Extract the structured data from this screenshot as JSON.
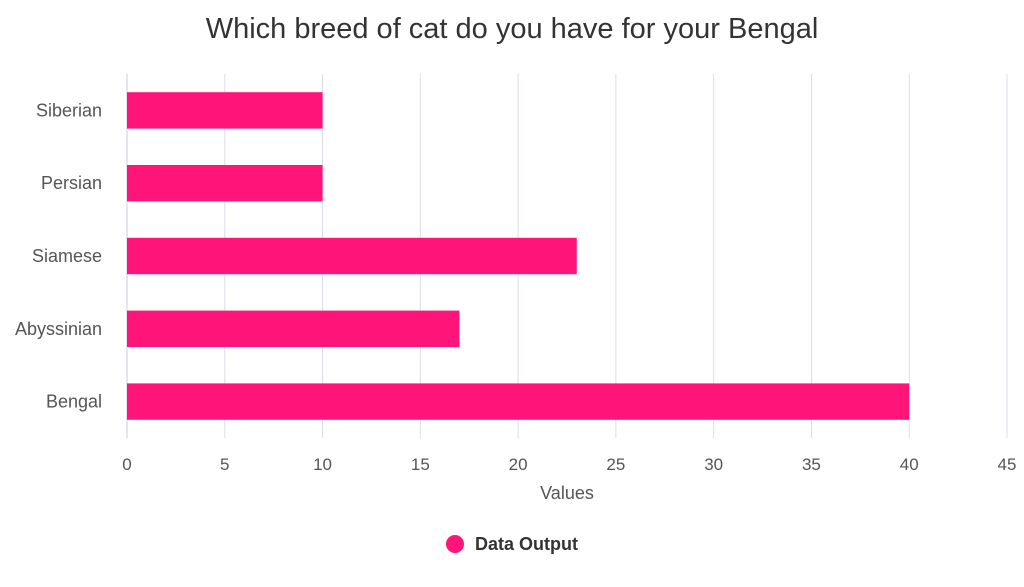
{
  "chart_data": {
    "type": "bar",
    "orientation": "horizontal",
    "title": "Which breed of cat do you have for your Bengal",
    "categories": [
      "Siberian",
      "Persian",
      "Siamese",
      "Abyssinian",
      "Bengal"
    ],
    "series": [
      {
        "name": "Data Output",
        "color": "#ff1479",
        "values": [
          10,
          10,
          23,
          17,
          40
        ]
      }
    ],
    "xlabel": "Values",
    "ylabel": "",
    "xlim": [
      0,
      45
    ],
    "xticks": [
      "0",
      "5",
      "10",
      "15",
      "20",
      "25",
      "30",
      "35",
      "40",
      "45"
    ],
    "grid": true,
    "legend_position": "bottom-center"
  }
}
